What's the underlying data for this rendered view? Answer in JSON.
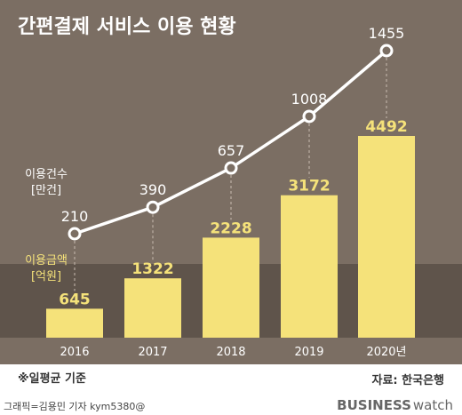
{
  "chart_data": {
    "type": "bar+line",
    "title": "간편결제 서비스 이용 현황",
    "categories": [
      "2016",
      "2017",
      "2018",
      "2019",
      "2020년"
    ],
    "series": [
      {
        "name": "이용건수",
        "unit": "[만건]",
        "kind": "line",
        "values": [
          210,
          390,
          657,
          1008,
          1455
        ]
      },
      {
        "name": "이용금액",
        "unit": "[억원]",
        "kind": "bar",
        "values": [
          645,
          1322,
          2228,
          3172,
          4492
        ]
      }
    ],
    "note": "※일평균 기준",
    "source": "자료: 한국은행",
    "credit": "그래픽=김용민 기자 kym5380@",
    "brand": {
      "bold": "BUSINESS",
      "light": "watch"
    },
    "colors": {
      "background": "#7b6e63",
      "band": "#5f544b",
      "bar": "#f5e27a",
      "line": "#ffffff",
      "point_fill": "#7b6e63",
      "bar_label": "#f5e27a",
      "line_label": "#ffffff",
      "legend_bar_label": "#f5e27a"
    }
  }
}
